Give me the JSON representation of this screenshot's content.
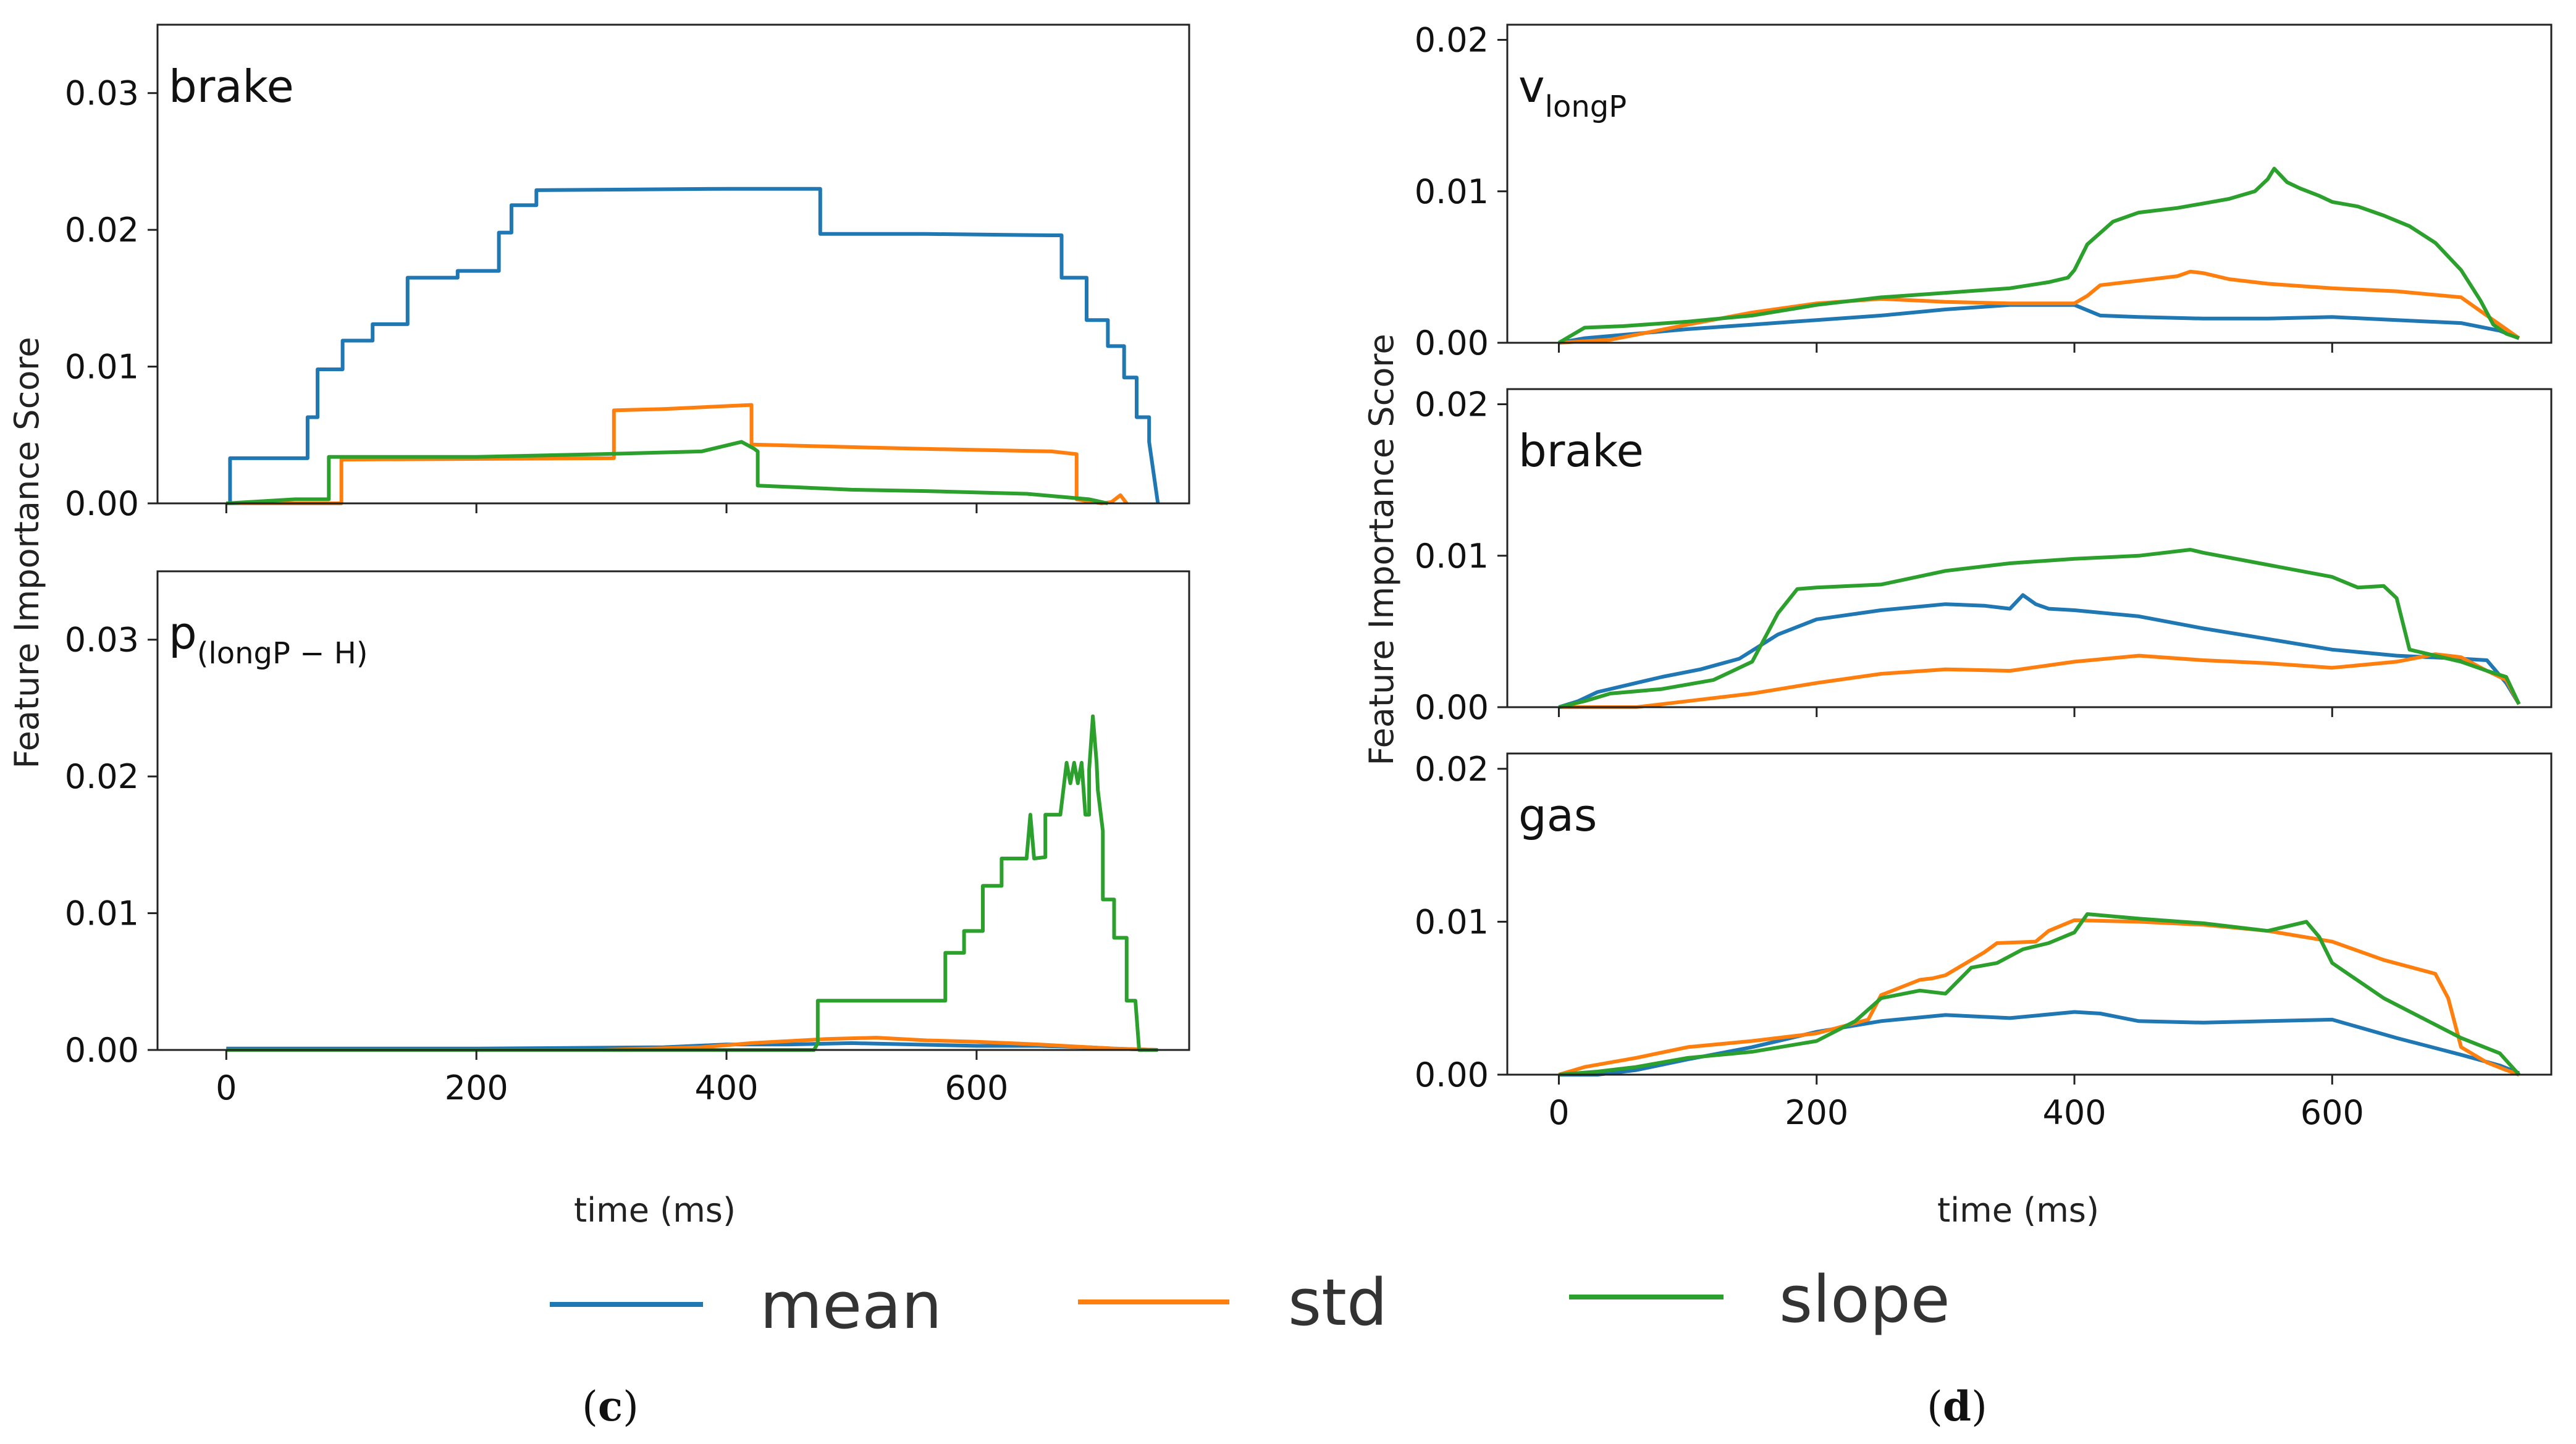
{
  "chart_data": [
    {
      "type": "line",
      "panel": "c",
      "subplot": 1,
      "label": "brake",
      "x_ticks": [
        "0",
        "200",
        "400",
        "600"
      ],
      "y_ticks": [
        "0.00",
        "0.01",
        "0.02",
        "0.03"
      ],
      "xlim": [
        -55,
        770
      ],
      "ylim": [
        0,
        0.035
      ],
      "series": [
        {
          "name": "mean",
          "color": "#1f77b4",
          "x": [
            0,
            3,
            3,
            65,
            65,
            73,
            73,
            93,
            93,
            117,
            117,
            145,
            145,
            185,
            185,
            218,
            218,
            228,
            228,
            248,
            248,
            400,
            430,
            475,
            475,
            560,
            660,
            668,
            668,
            688,
            688,
            705,
            705,
            718,
            718,
            728,
            728,
            738,
            738,
            745
          ],
          "y": [
            0,
            0,
            0.0033,
            0.0033,
            0.0063,
            0.0063,
            0.0098,
            0.0098,
            0.0119,
            0.0119,
            0.0131,
            0.0131,
            0.0165,
            0.0165,
            0.017,
            0.017,
            0.0198,
            0.0198,
            0.0218,
            0.0218,
            0.0229,
            0.023,
            0.023,
            0.023,
            0.0197,
            0.0197,
            0.0196,
            0.0196,
            0.0165,
            0.0165,
            0.0134,
            0.0134,
            0.0115,
            0.0115,
            0.0092,
            0.0092,
            0.0063,
            0.0063,
            0.0045,
            0
          ]
        },
        {
          "name": "std",
          "color": "#ff7f0e",
          "x": [
            0,
            88,
            92,
            92,
            310,
            310,
            350,
            420,
            420,
            550,
            660,
            680,
            680,
            700,
            708,
            715,
            720
          ],
          "y": [
            0,
            0,
            0,
            0.0032,
            0.0033,
            0.0068,
            0.0069,
            0.0072,
            0.0043,
            0.004,
            0.0038,
            0.0036,
            0.0003,
            0,
            0.0001,
            0.0006,
            0
          ]
        },
        {
          "name": "slope",
          "color": "#2ca02c",
          "x": [
            0,
            55,
            82,
            82,
            200,
            300,
            380,
            412,
            422,
            425,
            425,
            450,
            500,
            560,
            640,
            690,
            705
          ],
          "y": [
            0,
            0.0003,
            0.0003,
            0.0034,
            0.0034,
            0.0036,
            0.0038,
            0.0045,
            0.004,
            0.0038,
            0.0013,
            0.0012,
            0.001,
            0.0009,
            0.0007,
            0.0003,
            0
          ]
        }
      ]
    },
    {
      "type": "line",
      "panel": "c",
      "subplot": 2,
      "label": "p",
      "label_subscript": "(longP − H)",
      "x_ticks": [
        "0",
        "200",
        "400",
        "600"
      ],
      "y_ticks": [
        "0.00",
        "0.01",
        "0.02",
        "0.03"
      ],
      "xlim": [
        -55,
        770
      ],
      "ylim": [
        0,
        0.035
      ],
      "series": [
        {
          "name": "mean",
          "color": "#1f77b4",
          "x": [
            0,
            200,
            350,
            400,
            450,
            500,
            550,
            600,
            650,
            690,
            710,
            745
          ],
          "y": [
            0.0001,
            0.0001,
            0.0002,
            0.0004,
            0.0004,
            0.0005,
            0.0004,
            0.0003,
            0.0003,
            0.0002,
            0.0001,
            0
          ]
        },
        {
          "name": "std",
          "color": "#ff7f0e",
          "x": [
            0,
            300,
            380,
            420,
            480,
            520,
            560,
            600,
            650,
            690,
            710,
            745
          ],
          "y": [
            0,
            0,
            0.0002,
            0.0005,
            0.0008,
            0.0009,
            0.0007,
            0.0006,
            0.0004,
            0.0002,
            0.0001,
            0
          ]
        },
        {
          "name": "slope",
          "color": "#2ca02c",
          "x": [
            0,
            470,
            473,
            473,
            575,
            575,
            590,
            590,
            605,
            605,
            620,
            620,
            630,
            630,
            640,
            643,
            646,
            646,
            655,
            655,
            667,
            667,
            672,
            675,
            678,
            681,
            684,
            687,
            690,
            690,
            693,
            696,
            697,
            701,
            701,
            710,
            710,
            720,
            720,
            727,
            730,
            745
          ],
          "y": [
            0,
            0,
            0.0005,
            0.0036,
            0.0036,
            0.0071,
            0.0071,
            0.0087,
            0.0087,
            0.012,
            0.012,
            0.014,
            0.014,
            0.014,
            0.014,
            0.0172,
            0.014,
            0.014,
            0.0141,
            0.0172,
            0.0172,
            0.0172,
            0.021,
            0.0195,
            0.021,
            0.0195,
            0.021,
            0.0172,
            0.0172,
            0.0205,
            0.0244,
            0.021,
            0.019,
            0.016,
            0.011,
            0.011,
            0.0082,
            0.0082,
            0.0036,
            0.0036,
            0,
            0
          ]
        }
      ]
    },
    {
      "type": "line",
      "panel": "d",
      "subplot": 1,
      "label": "v",
      "label_subscript": "longP",
      "x_ticks": [
        "0",
        "200",
        "400",
        "600"
      ],
      "y_ticks": [
        "0.00",
        "0.01",
        "0.02"
      ],
      "xlim": [
        -40,
        770
      ],
      "ylim": [
        0,
        0.021
      ],
      "series": [
        {
          "name": "mean",
          "color": "#1f77b4",
          "x": [
            0,
            20,
            60,
            100,
            150,
            200,
            250,
            300,
            350,
            400,
            420,
            450,
            500,
            550,
            600,
            650,
            700,
            730,
            745
          ],
          "y": [
            0,
            0.0003,
            0.0006,
            0.0009,
            0.0012,
            0.0015,
            0.0018,
            0.0022,
            0.0025,
            0.0025,
            0.0018,
            0.0017,
            0.0016,
            0.0016,
            0.0017,
            0.0015,
            0.0013,
            0.0008,
            0.0003
          ]
        },
        {
          "name": "std",
          "color": "#ff7f0e",
          "x": [
            0,
            40,
            100,
            150,
            200,
            250,
            300,
            350,
            400,
            410,
            420,
            450,
            480,
            490,
            500,
            520,
            550,
            600,
            650,
            700,
            730,
            745
          ],
          "y": [
            0,
            0.0002,
            0.0012,
            0.002,
            0.0026,
            0.0029,
            0.0027,
            0.0026,
            0.0026,
            0.0031,
            0.0038,
            0.0041,
            0.0044,
            0.0047,
            0.0046,
            0.0042,
            0.0039,
            0.0036,
            0.0034,
            0.003,
            0.0012,
            0.0003
          ]
        },
        {
          "name": "slope",
          "color": "#2ca02c",
          "x": [
            0,
            20,
            50,
            100,
            150,
            200,
            250,
            300,
            350,
            380,
            395,
            400,
            410,
            430,
            450,
            480,
            500,
            520,
            540,
            550,
            555,
            565,
            575,
            590,
            600,
            620,
            640,
            660,
            680,
            700,
            715,
            725,
            735,
            745
          ],
          "y": [
            0,
            0.001,
            0.0011,
            0.0014,
            0.0018,
            0.0025,
            0.003,
            0.0033,
            0.0036,
            0.004,
            0.0043,
            0.0048,
            0.0065,
            0.008,
            0.0086,
            0.0089,
            0.0092,
            0.0095,
            0.01,
            0.0108,
            0.0115,
            0.0106,
            0.0102,
            0.0097,
            0.0093,
            0.009,
            0.0084,
            0.0077,
            0.0066,
            0.0048,
            0.0028,
            0.0012,
            0.0006,
            0.0003
          ]
        }
      ]
    },
    {
      "type": "line",
      "panel": "d",
      "subplot": 2,
      "label": "brake",
      "x_ticks": [
        "0",
        "200",
        "400",
        "600"
      ],
      "y_ticks": [
        "0.00",
        "0.01",
        "0.02"
      ],
      "xlim": [
        -40,
        770
      ],
      "ylim": [
        0,
        0.021
      ],
      "series": [
        {
          "name": "mean",
          "color": "#1f77b4",
          "x": [
            0,
            15,
            30,
            50,
            80,
            110,
            140,
            170,
            200,
            250,
            300,
            330,
            350,
            360,
            370,
            380,
            400,
            450,
            500,
            550,
            600,
            650,
            700,
            720,
            735,
            745
          ],
          "y": [
            0,
            0.0004,
            0.001,
            0.0014,
            0.002,
            0.0025,
            0.0032,
            0.0048,
            0.0058,
            0.0064,
            0.0068,
            0.0067,
            0.0065,
            0.0074,
            0.0068,
            0.0065,
            0.0064,
            0.006,
            0.0052,
            0.0045,
            0.0038,
            0.0034,
            0.0032,
            0.0031,
            0.0016,
            0.0002
          ]
        },
        {
          "name": "std",
          "color": "#ff7f0e",
          "x": [
            0,
            60,
            100,
            150,
            200,
            250,
            300,
            350,
            400,
            450,
            500,
            550,
            600,
            650,
            680,
            700,
            720,
            735,
            745
          ],
          "y": [
            0,
            0,
            0.0004,
            0.0009,
            0.0016,
            0.0022,
            0.0025,
            0.0024,
            0.003,
            0.0034,
            0.0031,
            0.0029,
            0.0026,
            0.003,
            0.0035,
            0.0033,
            0.0024,
            0.0018,
            0.0002
          ]
        },
        {
          "name": "slope",
          "color": "#2ca02c",
          "x": [
            0,
            20,
            40,
            80,
            120,
            150,
            170,
            185,
            200,
            250,
            300,
            350,
            400,
            450,
            490,
            500,
            550,
            600,
            620,
            640,
            650,
            660,
            680,
            700,
            720,
            735,
            745
          ],
          "y": [
            0,
            0.0004,
            0.0009,
            0.0012,
            0.0018,
            0.003,
            0.0062,
            0.0078,
            0.0079,
            0.0081,
            0.009,
            0.0095,
            0.0098,
            0.01,
            0.0104,
            0.0102,
            0.0094,
            0.0086,
            0.0079,
            0.008,
            0.0072,
            0.0038,
            0.0034,
            0.003,
            0.0024,
            0.002,
            0.0002
          ]
        }
      ]
    },
    {
      "type": "line",
      "panel": "d",
      "subplot": 3,
      "label": "gas",
      "x_ticks": [
        "0",
        "200",
        "400",
        "600"
      ],
      "y_ticks": [
        "0.00",
        "0.01",
        "0.02"
      ],
      "xlim": [
        -40,
        770
      ],
      "ylim": [
        0,
        0.021
      ],
      "series": [
        {
          "name": "mean",
          "color": "#1f77b4",
          "x": [
            0,
            30,
            60,
            100,
            150,
            200,
            250,
            300,
            350,
            400,
            420,
            450,
            500,
            550,
            600,
            650,
            700,
            730,
            745
          ],
          "y": [
            0,
            0,
            0.0003,
            0.001,
            0.0018,
            0.0028,
            0.0035,
            0.0039,
            0.0037,
            0.0041,
            0.004,
            0.0035,
            0.0034,
            0.0035,
            0.0036,
            0.0024,
            0.0013,
            0.0006,
            0.0001
          ]
        },
        {
          "name": "std",
          "color": "#ff7f0e",
          "x": [
            0,
            20,
            60,
            100,
            150,
            200,
            240,
            250,
            280,
            290,
            300,
            330,
            340,
            370,
            380,
            400,
            450,
            500,
            550,
            600,
            640,
            680,
            690,
            700,
            720,
            735,
            745
          ],
          "y": [
            0,
            0.0005,
            0.0011,
            0.0018,
            0.0022,
            0.0027,
            0.0036,
            0.0052,
            0.0062,
            0.0063,
            0.0065,
            0.008,
            0.0086,
            0.0087,
            0.0094,
            0.0101,
            0.01,
            0.0098,
            0.0094,
            0.0087,
            0.0075,
            0.0066,
            0.005,
            0.0018,
            0.0008,
            0.0003,
            0
          ]
        },
        {
          "name": "slope",
          "color": "#2ca02c",
          "x": [
            0,
            30,
            60,
            100,
            150,
            200,
            230,
            250,
            280,
            300,
            320,
            340,
            360,
            380,
            400,
            410,
            450,
            500,
            550,
            580,
            590,
            600,
            640,
            700,
            730,
            745
          ],
          "y": [
            0,
            0.0002,
            0.0005,
            0.0011,
            0.0015,
            0.0022,
            0.0035,
            0.005,
            0.0055,
            0.0053,
            0.007,
            0.0073,
            0.0082,
            0.0086,
            0.0093,
            0.0105,
            0.0102,
            0.0099,
            0.0094,
            0.01,
            0.009,
            0.0073,
            0.005,
            0.0024,
            0.0014,
            0
          ]
        }
      ]
    }
  ],
  "axis": {
    "ylabel_left": "Feature Importance Score",
    "ylabel_right": "Feature Importance Score",
    "xlabel_left": "time (ms)",
    "xlabel_right": "time (ms)"
  },
  "legend": [
    {
      "name": "mean",
      "color": "#1f77b4"
    },
    {
      "name": "std",
      "color": "#ff7f0e"
    },
    {
      "name": "slope",
      "color": "#2ca02c"
    }
  ],
  "captions": {
    "left": {
      "open": "(",
      "letter": "c",
      "close": ")"
    },
    "right": {
      "open": "(",
      "letter": "d",
      "close": ")"
    }
  }
}
